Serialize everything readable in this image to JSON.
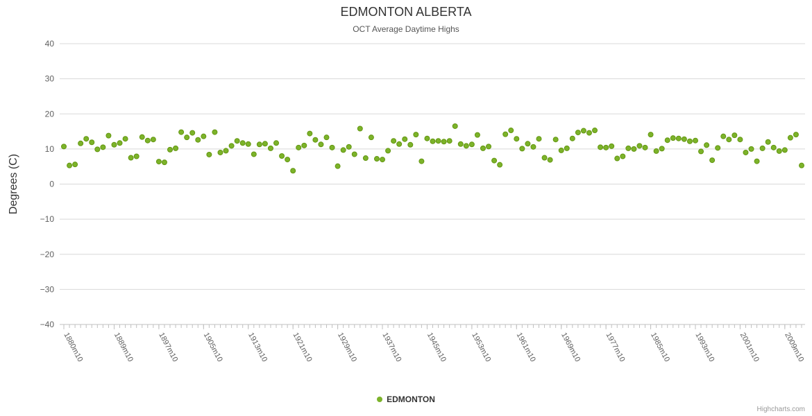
{
  "chart": {
    "title": "EDMONTON ALBERTA",
    "subtitle": "OCT Average Daytime Highs",
    "legend_label": "EDMONTON",
    "credits": "Highcharts.com",
    "point_color": "#7cb32a",
    "point_stroke": "#639610",
    "grid_color": "#d8d8d8",
    "axis_line_color": "#c0c0c0",
    "label_color": "#606060"
  },
  "chart_data": {
    "type": "scatter",
    "title": "EDMONTON ALBERTA",
    "subtitle": "OCT Average Daytime Highs",
    "xlabel": "",
    "ylabel": "Degrees (C)",
    "ylim": [
      -40,
      40
    ],
    "y_tick_step": 10,
    "grid": true,
    "legend_position": "bottom",
    "x_start_year": 1880,
    "x_label_suffix": "m10",
    "x_tick_years": [
      1880,
      1889,
      1897,
      1905,
      1913,
      1921,
      1929,
      1937,
      1945,
      1953,
      1961,
      1969,
      1977,
      1985,
      1993,
      2001,
      2009
    ],
    "x_tick_labels": [
      "1880m10",
      "1889m10",
      "1897m10",
      "1905m10",
      "1913m10",
      "1921m10",
      "1929m10",
      "1937m10",
      "1945m10",
      "1953m10",
      "1961m10",
      "1969m10",
      "1977m10",
      "1985m10",
      "1993m10",
      "2001m10",
      "2009m10"
    ],
    "series": [
      {
        "name": "EDMONTON",
        "values": [
          10.7,
          5.3,
          5.6,
          11.6,
          12.9,
          11.9,
          9.9,
          10.5,
          13.8,
          11.2,
          11.7,
          12.9,
          7.5,
          7.9,
          13.4,
          12.4,
          12.7,
          6.4,
          6.2,
          9.8,
          10.2,
          14.8,
          13.3,
          14.6,
          12.6,
          13.6,
          8.4,
          14.8,
          9.0,
          9.5,
          10.9,
          12.3,
          11.7,
          11.4,
          8.5,
          11.3,
          11.5,
          10.2,
          11.7,
          8.0,
          7.0,
          3.8,
          10.4,
          11.0,
          14.4,
          12.6,
          11.3,
          13.3,
          10.4,
          5.1,
          9.7,
          10.6,
          8.5,
          15.8,
          7.4,
          13.3,
          7.2,
          7.0,
          9.5,
          12.3,
          11.4,
          12.8,
          11.2,
          14.1,
          6.5,
          13.0,
          12.2,
          12.3,
          12.1,
          12.3,
          16.5,
          11.4,
          10.9,
          11.3,
          14.0,
          10.2,
          10.7,
          6.7,
          5.5,
          14.2,
          15.3,
          12.9,
          10.1,
          11.5,
          10.6,
          12.9,
          7.5,
          6.9,
          12.7,
          9.6,
          10.2,
          13.0,
          14.7,
          15.2,
          14.6,
          15.3,
          10.5,
          10.4,
          10.8,
          7.3,
          7.9,
          10.2,
          10.0,
          10.9,
          10.4,
          14.1,
          9.4,
          10.1,
          12.5,
          13.1,
          13.0,
          12.8,
          12.2,
          12.4,
          9.3,
          11.1,
          6.8,
          10.3,
          13.6,
          12.7,
          13.9,
          12.7,
          9.0,
          10.0,
          6.5,
          10.2,
          12.0,
          10.4,
          9.4,
          9.7,
          13.2,
          14.1,
          5.3
        ]
      }
    ]
  }
}
